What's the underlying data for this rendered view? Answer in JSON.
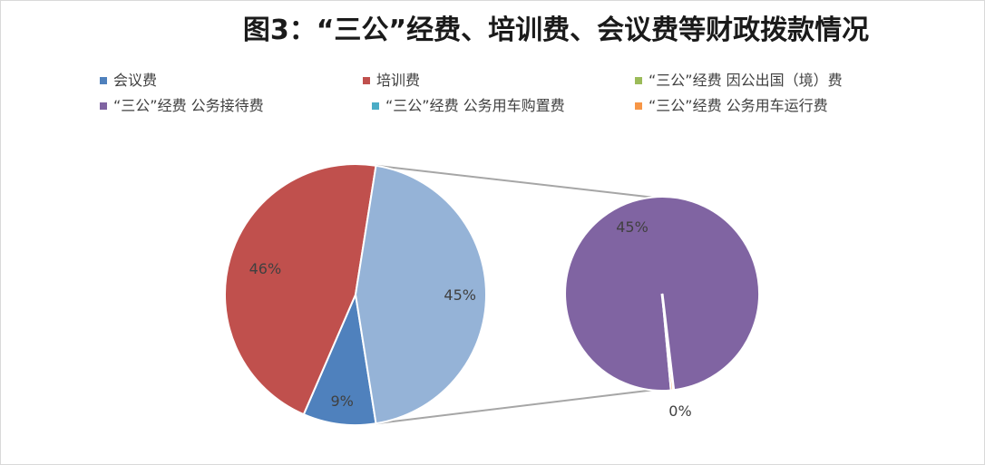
{
  "chart_data": {
    "type": "pie",
    "subtype": "pie-of-pie",
    "title": "图3：“三公”经费、培训费、会议费等财政拨款情况",
    "legend_position": "top",
    "categories": [
      "会议费",
      "培训费",
      "“三公”经费 因公出国（境）费",
      "“三公”经费 公务接待费",
      "“三公”经费 公务用车购置费",
      "“三公”经费 公务用车运行费"
    ],
    "colors": [
      "#4f81bd",
      "#c0504d",
      "#9bbb59",
      "#8064a2",
      "#4bacc6",
      "#f79646"
    ],
    "main_pie": {
      "slices": [
        {
          "category": "会议费",
          "value": 9,
          "label": "9%",
          "color": "#4f81bd"
        },
        {
          "category": "培训费",
          "value": 46,
          "label": "46%",
          "color": "#c0504d"
        },
        {
          "category": "",
          "value": 45,
          "label": "45%",
          "color": "#95b3d7"
        }
      ]
    },
    "secondary_pie": {
      "slices": [
        {
          "category": "“三公”经费 公务接待费",
          "value": 45,
          "label": "45%",
          "color": "#8064a2"
        },
        {
          "category": "“三公”经费 公务用车运行费",
          "value": 0.2,
          "label": "0%",
          "color": "#f79646"
        }
      ]
    }
  }
}
